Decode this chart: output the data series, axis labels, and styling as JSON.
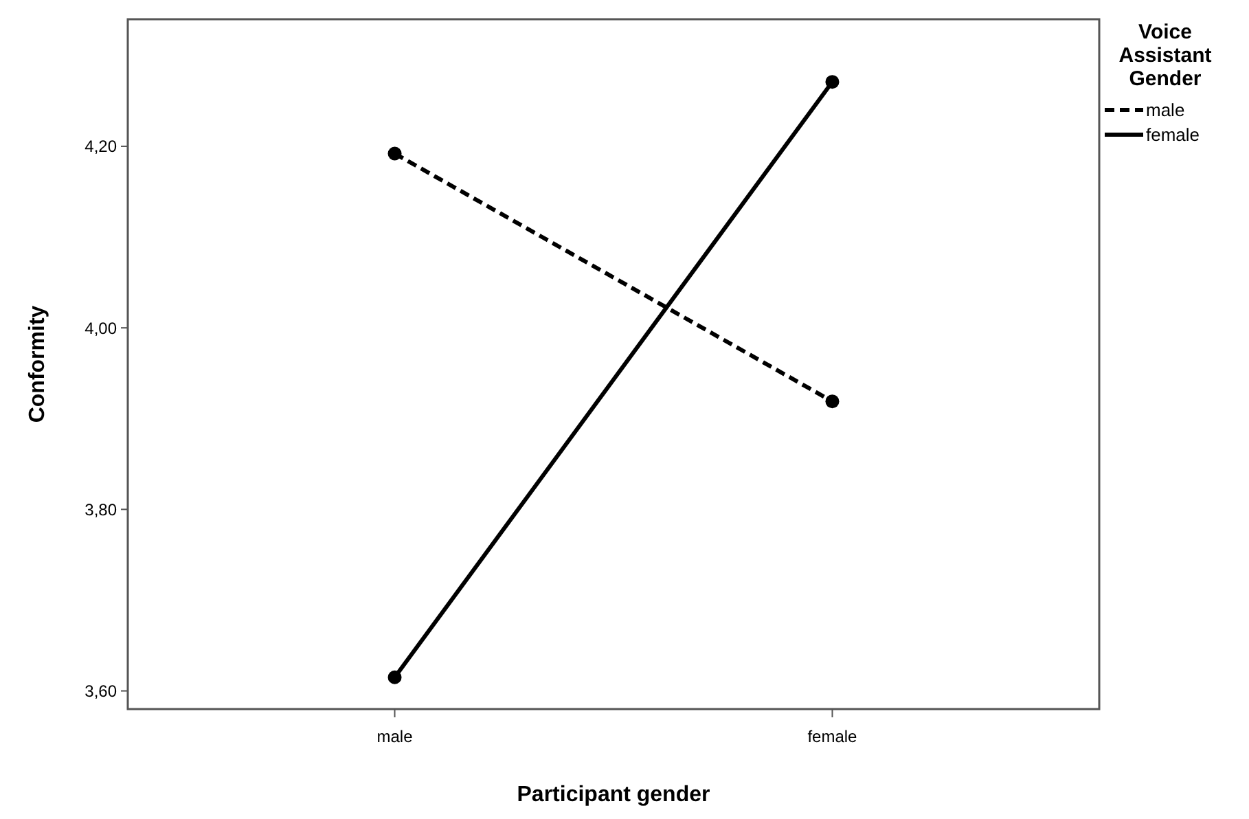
{
  "chart_data": {
    "type": "line",
    "xlabel": "Participant gender",
    "ylabel": "Conformity",
    "legend_title": "Voice Assistant Gender",
    "categories": [
      "male",
      "female"
    ],
    "series": [
      {
        "name": "male",
        "color": "#000000",
        "line_style": "dashed",
        "values": [
          4.192,
          3.919
        ]
      },
      {
        "name": "female",
        "color": "#000000",
        "line_style": "solid",
        "values": [
          3.615,
          4.271
        ]
      }
    ],
    "ylim": [
      3.58,
      4.34
    ],
    "yticks": [
      {
        "value": 3.6,
        "label": "3,60"
      },
      {
        "value": 3.8,
        "label": "3,80"
      },
      {
        "value": 4.0,
        "label": "4,00"
      },
      {
        "value": 4.2,
        "label": "4,20"
      }
    ],
    "marker": "circle",
    "legend": "top right",
    "grid": false
  }
}
